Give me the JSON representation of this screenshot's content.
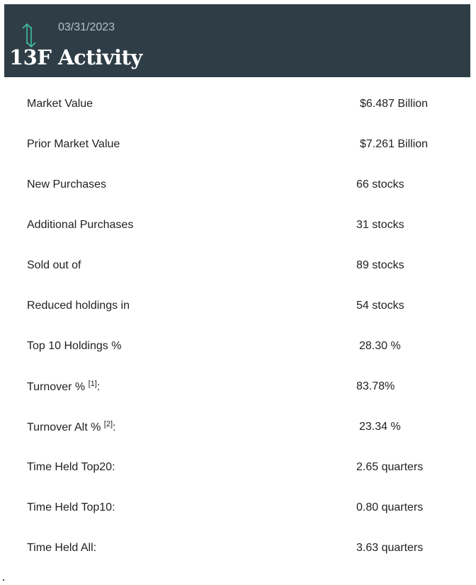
{
  "header": {
    "date": "03/31/2023",
    "title": "13F Activity",
    "icon": "swap-vertical-icon"
  },
  "rows": [
    {
      "label": "Market Value",
      "value": "$6.487 Billion"
    },
    {
      "label": "Prior Market Value",
      "value": "$7.261 Billion"
    },
    {
      "label": "New Purchases",
      "value": "66 stocks"
    },
    {
      "label": "Additional Purchases",
      "value": "31 stocks"
    },
    {
      "label": "Sold out of",
      "value": "89 stocks"
    },
    {
      "label": "Reduced holdings in",
      "value": "54 stocks"
    },
    {
      "label": "Top 10 Holdings %",
      "value": "28.30 %"
    },
    {
      "label": "Turnover %",
      "footnote": "[1]",
      "suffix": ":",
      "value": "83.78%"
    },
    {
      "label": "Turnover Alt %",
      "footnote": "[2]",
      "suffix": ":",
      "value": "23.34 %"
    },
    {
      "label": "Time Held Top20:",
      "value": "2.65 quarters"
    },
    {
      "label": "Time Held Top10:",
      "value": "0.80 quarters"
    },
    {
      "label": "Time Held All:",
      "value": "3.63 quarters"
    }
  ],
  "colors": {
    "header_bg": "#2f3e46",
    "icon_accent": "#3fbf9f",
    "date_text": "#b7c0c6"
  }
}
